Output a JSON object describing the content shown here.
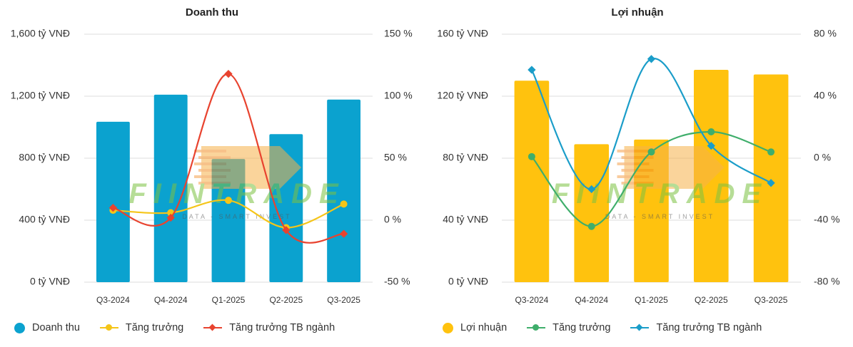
{
  "colors": {
    "revenue_bar": "#0ba2cf",
    "profit_bar": "#ffc20e",
    "growth_yellow": "#f5c518",
    "industry_red": "#e8432f",
    "growth_green": "#3fae6b",
    "industry_blue": "#1a9dc9",
    "grid": "#dedede"
  },
  "chart_data": [
    {
      "type": "bar",
      "title": "Doanh thu",
      "categories": [
        "Q3-2024",
        "Q4-2024",
        "Q1-2025",
        "Q2-2025",
        "Q3-2025"
      ],
      "y_ticks": [
        "1,600 tỷ VNĐ",
        "1,200 tỷ VNĐ",
        "800 tỷ VNĐ",
        "400 tỷ VNĐ",
        "0 tỷ VNĐ"
      ],
      "y2_ticks": [
        "150 %",
        "100 %",
        "50 %",
        "0 %",
        "-50 %"
      ],
      "ylim": [
        0,
        1600
      ],
      "y2lim": [
        -50,
        150
      ],
      "series": [
        {
          "name": "Doanh thu",
          "kind": "bar",
          "axis": "left",
          "color": "#0ba2cf",
          "values": [
            1035,
            1210,
            795,
            955,
            1178
          ]
        },
        {
          "name": "Tăng trưởng",
          "kind": "line",
          "axis": "right",
          "marker": "circle",
          "color": "#f5c518",
          "values": [
            8,
            6,
            16,
            -6,
            13
          ]
        },
        {
          "name": "Tăng trưởng TB ngành",
          "kind": "line",
          "axis": "right",
          "marker": "diamond",
          "color": "#e8432f",
          "values": [
            10,
            2,
            118,
            -8,
            -11
          ]
        }
      ],
      "legend_position": "bottom-left",
      "grid": true
    },
    {
      "type": "bar",
      "title": "Lợi nhuận",
      "categories": [
        "Q3-2024",
        "Q4-2024",
        "Q1-2025",
        "Q2-2025",
        "Q3-2025"
      ],
      "y_ticks": [
        "160 tỷ VNĐ",
        "120 tỷ VNĐ",
        "80 tỷ VNĐ",
        "40 tỷ VNĐ",
        "0 tỷ VNĐ"
      ],
      "y2_ticks": [
        "80 %",
        "40 %",
        "0 %",
        "-40 %",
        "-80 %"
      ],
      "ylim": [
        0,
        160
      ],
      "y2lim": [
        -80,
        80
      ],
      "series": [
        {
          "name": "Lợi nhuận",
          "kind": "bar",
          "axis": "left",
          "color": "#ffc20e",
          "values": [
            130,
            89,
            92,
            137,
            134
          ]
        },
        {
          "name": "Tăng trưởng",
          "kind": "line",
          "axis": "right",
          "marker": "circle",
          "color": "#3fae6b",
          "values": [
            1,
            -44,
            4,
            17,
            4
          ]
        },
        {
          "name": "Tăng trưởng TB ngành",
          "kind": "line",
          "axis": "right",
          "marker": "diamond",
          "color": "#1a9dc9",
          "values": [
            57,
            -20,
            64,
            8,
            -16
          ]
        }
      ],
      "legend_position": "bottom-left",
      "grid": true
    }
  ]
}
